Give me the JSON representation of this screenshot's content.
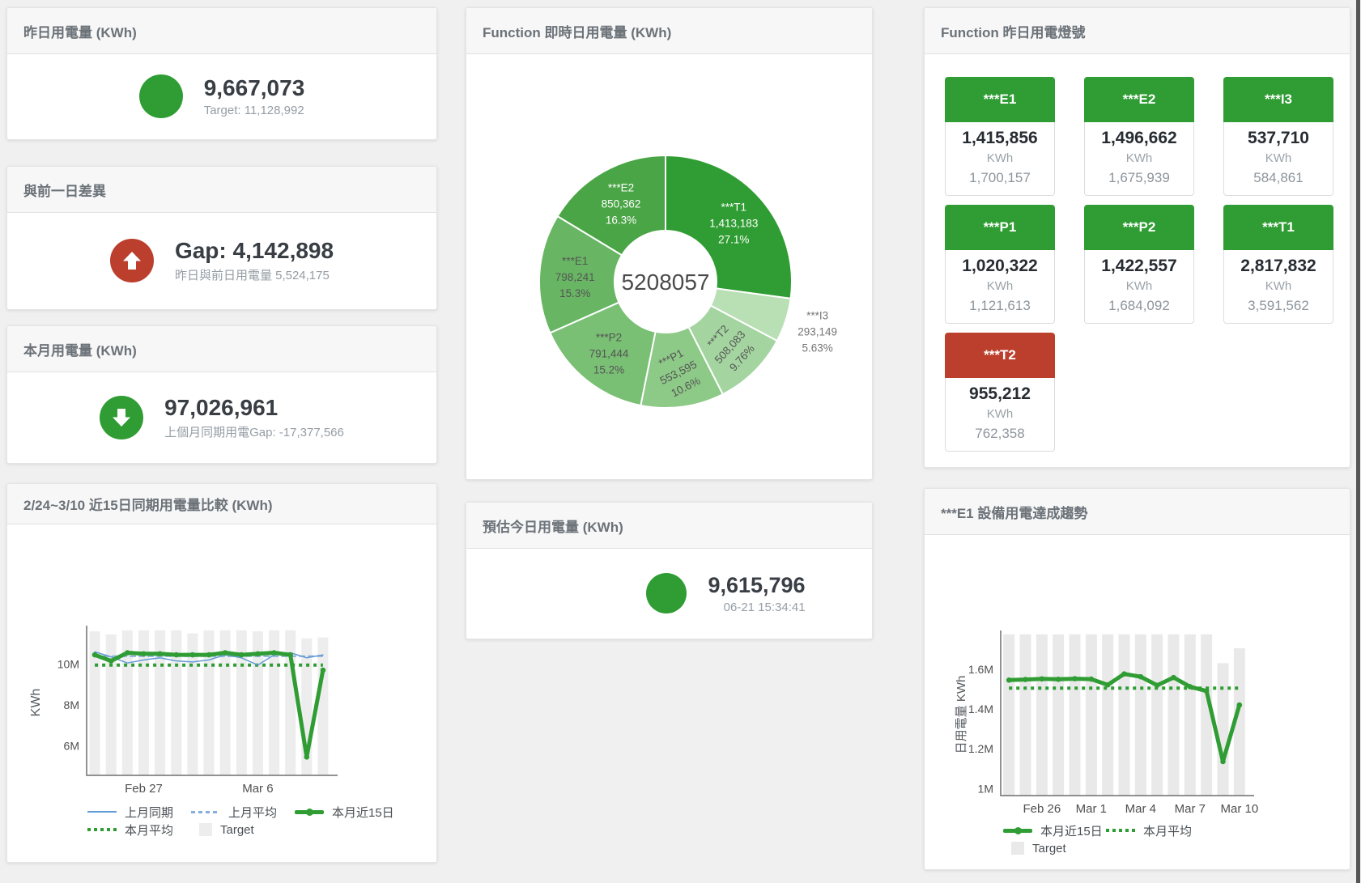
{
  "colors": {
    "green": "#2f9d33",
    "red": "#bb3f2c",
    "blue": "#639bd4",
    "blue_light": "#85aedd",
    "bar_gray_compare": "#ededed",
    "bar_gray_trend": "#e9e9e9",
    "axis": "#6e6e6e",
    "tick_text": "#4f4f4f"
  },
  "stat_cards": [
    {
      "title": "昨日用電量 (KWh)",
      "icon": "circle",
      "icon_color": "#2f9d33",
      "value": "9,667,073",
      "subtitle": "Target: 11,128,992"
    },
    {
      "title": "與前一日差異",
      "icon": "arrow-up",
      "icon_color": "#bb3f2c",
      "value": "Gap: 4,142,898",
      "subtitle": "昨日與前日用電量 5,524,175"
    },
    {
      "title": "本月用電量 (KWh)",
      "icon": "arrow-down",
      "icon_color": "#2f9d33",
      "value": "97,026,961",
      "subtitle": "上個月同期用電Gap: -17,377,566"
    },
    {
      "title": "預估今日用電量 (KWh)",
      "icon": "circle",
      "icon_color": "#2f9d33",
      "value": "9,615,796",
      "subtitle": "06-21 15:34:41"
    }
  ],
  "lights": {
    "title": "Function 昨日用電燈號",
    "unit": "KWh",
    "tiles": [
      {
        "label": "***E1",
        "value": "1,415,856",
        "target": "1,700,157",
        "status": "green"
      },
      {
        "label": "***E2",
        "value": "1,496,662",
        "target": "1,675,939",
        "status": "green"
      },
      {
        "label": "***I3",
        "value": "537,710",
        "target": "584,861",
        "status": "green"
      },
      {
        "label": "***P1",
        "value": "1,020,322",
        "target": "1,121,613",
        "status": "green"
      },
      {
        "label": "***P2",
        "value": "1,422,557",
        "target": "1,684,092",
        "status": "green"
      },
      {
        "label": "***T1",
        "value": "2,817,832",
        "target": "3,591,562",
        "status": "green"
      },
      {
        "label": "***T2",
        "value": "955,212",
        "target": "762,358",
        "status": "red"
      }
    ]
  },
  "chart_data": [
    {
      "type": "line",
      "title": "2/24~3/10 近15日同期用電量比較 (KWh)",
      "ylabel": "KWh",
      "x": [
        "2/24",
        "2/25",
        "2/26",
        "2/27",
        "2/28",
        "3/1",
        "3/2",
        "3/3",
        "3/4",
        "3/5",
        "3/6",
        "3/7",
        "3/8",
        "3/9",
        "3/10"
      ],
      "xticks": [
        {
          "i": 3,
          "label": "Feb 27"
        },
        {
          "i": 10,
          "label": "Mar 6"
        }
      ],
      "yticks": [
        {
          "v": 6,
          "label": "6M"
        },
        {
          "v": 8,
          "label": "8M"
        },
        {
          "v": 10,
          "label": "10M"
        }
      ],
      "ylim": [
        4.55,
        11.72
      ],
      "unit": "M KWh",
      "legend_position": "bottom-left",
      "series": [
        {
          "name": "上月同期",
          "style": "line",
          "color": "#639bd4",
          "values": [
            10.6,
            10.35,
            10.05,
            10.2,
            10.3,
            10.15,
            10.1,
            10.2,
            10.45,
            10.3,
            9.95,
            10.45,
            10.55,
            10.3,
            10.45
          ]
        },
        {
          "name": "上月平均",
          "style": "dashed",
          "color": "#85aedd",
          "value": 10.38
        },
        {
          "name": "本月近15日",
          "style": "thick",
          "color": "#2f9d33",
          "values": [
            10.45,
            10.15,
            10.55,
            10.5,
            10.5,
            10.45,
            10.45,
            10.45,
            10.55,
            10.45,
            10.5,
            10.55,
            10.45,
            5.45,
            9.7
          ]
        },
        {
          "name": "本月平均",
          "style": "dotted",
          "color": "#2f9d33",
          "value": 9.95
        },
        {
          "name": "Target",
          "style": "bar",
          "color": "#ededed",
          "values": [
            11.6,
            11.45,
            11.65,
            11.65,
            11.65,
            11.65,
            11.5,
            11.65,
            11.65,
            11.65,
            11.6,
            11.65,
            11.65,
            11.25,
            11.3
          ]
        }
      ]
    },
    {
      "type": "pie",
      "title": "Function 即時日用電量 (KWh)",
      "center_label": "5208057",
      "slices": [
        {
          "name": "***T1",
          "value": 1413183,
          "value_label": "1,413,183",
          "pct_label": "27.1%",
          "color": "#2f9d33",
          "label_color": "#ffffff",
          "rotate": 0,
          "outside": false
        },
        {
          "name": "***I3",
          "value": 293149,
          "value_label": "293,149",
          "pct_label": "5.63%",
          "color": "#b9dfb4",
          "label_color": "#757575",
          "rotate": 0,
          "outside": true
        },
        {
          "name": "***T2",
          "value": 508083,
          "value_label": "508,083",
          "pct_label": "9.76%",
          "color": "#a4d5a0",
          "label_color": "#555555",
          "rotate": -48,
          "outside": false
        },
        {
          "name": "***P1",
          "value": 553595,
          "value_label": "553,595",
          "pct_label": "10.6%",
          "color": "#8dc987",
          "label_color": "#555555",
          "rotate": -27,
          "outside": false
        },
        {
          "name": "***P2",
          "value": 791444,
          "value_label": "791,444",
          "pct_label": "15.2%",
          "color": "#79bf74",
          "label_color": "#555555",
          "rotate": 0,
          "outside": false
        },
        {
          "name": "***E1",
          "value": 798241,
          "value_label": "798,241",
          "pct_label": "15.3%",
          "color": "#68b663",
          "label_color": "#555555",
          "rotate": 0,
          "outside": false
        },
        {
          "name": "***E2",
          "value": 850362,
          "value_label": "850,362",
          "pct_label": "16.3%",
          "color": "#4aa546",
          "label_color": "#ffffff",
          "rotate": 0,
          "outside": false
        }
      ]
    },
    {
      "type": "line",
      "title": "***E1 設備用電達成趨勢",
      "ylabel": "日用電量 KWh",
      "x": [
        "2/24",
        "2/25",
        "2/26",
        "2/27",
        "2/28",
        "3/1",
        "3/2",
        "3/3",
        "3/4",
        "3/5",
        "3/6",
        "3/7",
        "3/8",
        "3/9",
        "3/10"
      ],
      "xticks": [
        {
          "i": 2,
          "label": "Feb 26"
        },
        {
          "i": 5,
          "label": "Mar 1"
        },
        {
          "i": 8,
          "label": "Mar 4"
        },
        {
          "i": 11,
          "label": "Mar 7"
        },
        {
          "i": 14,
          "label": "Mar 10"
        }
      ],
      "yticks": [
        {
          "v": 1,
          "label": "1M"
        },
        {
          "v": 1.2,
          "label": "1.2M"
        },
        {
          "v": 1.4,
          "label": "1.4M"
        },
        {
          "v": 1.6,
          "label": "1.6M"
        }
      ],
      "ylim": [
        0.965,
        1.778
      ],
      "unit": "M KWh",
      "legend_position": "bottom-left",
      "series": [
        {
          "name": "本月近15日",
          "style": "thick",
          "color": "#2f9d33",
          "values": [
            1.545,
            1.548,
            1.551,
            1.549,
            1.552,
            1.55,
            1.521,
            1.576,
            1.562,
            1.519,
            1.558,
            1.512,
            1.49,
            1.136,
            1.42
          ]
        },
        {
          "name": "本月平均",
          "style": "dotted",
          "color": "#2f9d33",
          "value": 1.505
        },
        {
          "name": "Target",
          "style": "bar",
          "color": "#e9e9e9",
          "values": [
            1.775,
            1.775,
            1.775,
            1.775,
            1.775,
            1.775,
            1.775,
            1.775,
            1.775,
            1.775,
            1.775,
            1.775,
            1.775,
            1.63,
            1.705
          ]
        }
      ]
    }
  ]
}
